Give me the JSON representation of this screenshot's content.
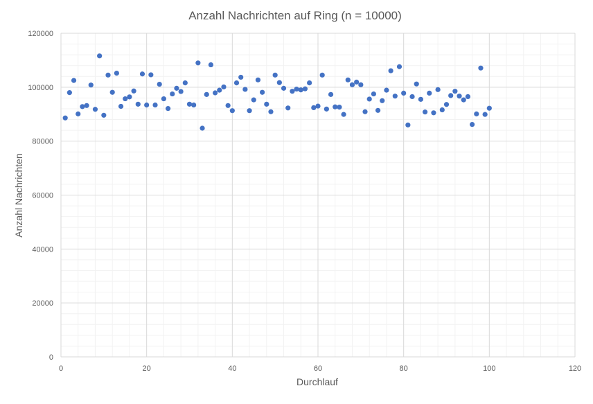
{
  "chart_data": {
    "type": "scatter",
    "title": "Anzahl Nachrichten auf Ring (n = 10000)",
    "xlabel": "Durchlauf",
    "ylabel": "Anzahl Nachrichten",
    "xlim": [
      0,
      120
    ],
    "ylim": [
      0,
      120000
    ],
    "x_ticks": [
      0,
      20,
      40,
      60,
      80,
      100,
      120
    ],
    "y_ticks": [
      0,
      20000,
      40000,
      60000,
      80000,
      100000,
      120000
    ],
    "x_tick_labels": [
      "0",
      "20",
      "40",
      "60",
      "80",
      "100",
      "120"
    ],
    "y_tick_labels": [
      "0",
      "20000",
      "40000",
      "60000",
      "80000",
      "100000",
      "120000"
    ],
    "grid": true,
    "minor_grid": true,
    "legend": "none",
    "marker_color": "#4472C4",
    "series": [
      {
        "x": [
          1,
          2,
          3,
          4,
          5,
          6,
          7,
          8,
          9,
          10,
          11,
          12,
          13,
          14,
          15,
          16,
          17,
          18,
          19,
          20,
          21,
          22,
          23,
          24,
          25,
          26,
          27,
          28,
          29,
          30,
          31,
          32,
          33,
          34,
          35,
          36,
          37,
          38,
          39,
          40,
          41,
          42,
          43,
          44,
          45,
          46,
          47,
          48,
          49,
          50,
          51,
          52,
          53,
          54,
          55,
          56,
          57,
          58,
          59,
          60,
          61,
          62,
          63,
          64,
          65,
          66,
          67,
          68,
          69,
          70,
          71,
          72,
          73,
          74,
          75,
          76,
          77,
          78,
          79,
          80,
          81,
          82,
          83,
          84,
          85,
          86,
          87,
          88,
          89,
          90,
          91,
          92,
          93,
          94,
          95,
          96,
          97,
          98,
          99,
          100
        ],
        "y": [
          88600,
          98000,
          102500,
          90100,
          92800,
          93200,
          100800,
          91800,
          111600,
          89600,
          104500,
          98100,
          105200,
          92900,
          95700,
          96400,
          98600,
          93700,
          104900,
          93400,
          104600,
          93400,
          101100,
          95700,
          92100,
          97500,
          99600,
          98400,
          101600,
          93700,
          93400,
          109000,
          84800,
          97300,
          108300,
          97900,
          98900,
          100100,
          93200,
          91300,
          101600,
          103700,
          99200,
          91300,
          95300,
          102700,
          98100,
          93700,
          90900,
          104500,
          101700,
          99600,
          92300,
          98500,
          99300,
          99000,
          99400,
          101600,
          92400,
          93000,
          104500,
          91900,
          97300,
          92700,
          92600,
          89900,
          102700,
          100900,
          101900,
          100900,
          90900,
          95600,
          97500,
          91400,
          95000,
          98900,
          106100,
          96700,
          107600,
          97800,
          86000,
          96500,
          101200,
          95500,
          90800,
          97800,
          90500,
          99100,
          91600,
          93600,
          96900,
          98500,
          96700,
          95300,
          96500,
          86200,
          90100,
          107100,
          89900,
          92200
        ]
      }
    ]
  }
}
